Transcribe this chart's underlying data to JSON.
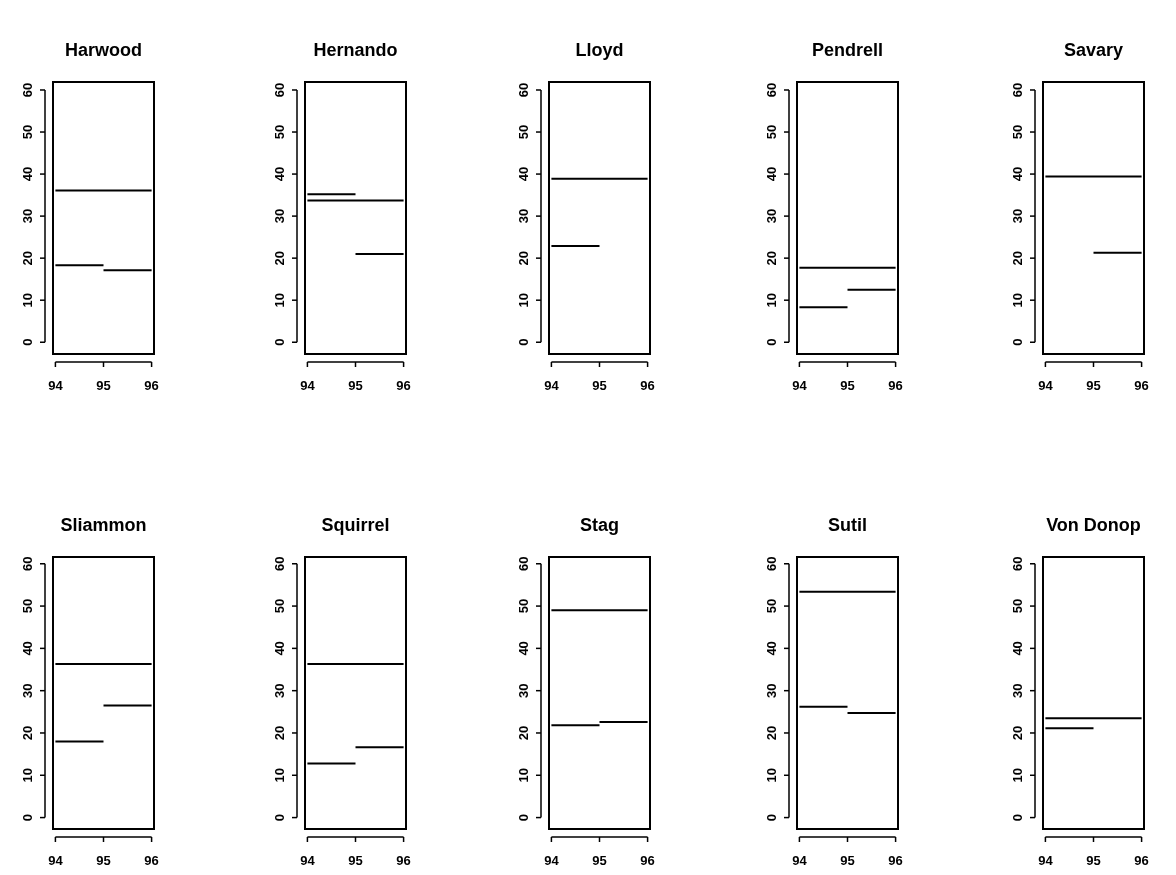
{
  "chart_data": [
    {
      "type": "line",
      "title": "Harwood",
      "xlim": [
        93.95,
        96.05
      ],
      "xticks": [
        94,
        95,
        96
      ],
      "ylim": [
        -2.8,
        61.9
      ],
      "yticks": [
        0,
        10,
        20,
        30,
        40,
        50,
        60
      ],
      "series": [
        {
          "color": "#000000",
          "x": [
            94,
            96
          ],
          "values": [
            36.1,
            36.1
          ]
        },
        {
          "color": "#000000",
          "x": [
            94,
            95
          ],
          "values": [
            18.3,
            18.3
          ]
        },
        {
          "color": "#000000",
          "x": [
            95,
            96
          ],
          "values": [
            17.1,
            17.1
          ]
        }
      ]
    },
    {
      "type": "line",
      "title": "Hernando",
      "xlim": [
        93.95,
        96.05
      ],
      "xticks": [
        94,
        95,
        96
      ],
      "ylim": [
        -2.8,
        61.9
      ],
      "yticks": [
        0,
        10,
        20,
        30,
        40,
        50,
        60
      ],
      "series": [
        {
          "color": "#000000",
          "x": [
            94,
            96
          ],
          "values": [
            33.7,
            33.7
          ]
        },
        {
          "color": "#000000",
          "x": [
            94,
            95
          ],
          "values": [
            35.2,
            35.2
          ]
        },
        {
          "color": "#000000",
          "x": [
            95,
            96
          ],
          "values": [
            21.0,
            21.0
          ]
        }
      ]
    },
    {
      "type": "line",
      "title": "Lloyd",
      "xlim": [
        93.95,
        96.05
      ],
      "xticks": [
        94,
        95,
        96
      ],
      "ylim": [
        -2.8,
        61.9
      ],
      "yticks": [
        0,
        10,
        20,
        30,
        40,
        50,
        60
      ],
      "series": [
        {
          "color": "#000000",
          "x": [
            94,
            96
          ],
          "values": [
            38.9,
            38.9
          ]
        },
        {
          "color": "#000000",
          "x": [
            94,
            95
          ],
          "values": [
            22.9,
            22.9
          ]
        }
      ]
    },
    {
      "type": "line",
      "title": "Pendrell",
      "xlim": [
        93.95,
        96.05
      ],
      "xticks": [
        94,
        95,
        96
      ],
      "ylim": [
        -2.8,
        61.9
      ],
      "yticks": [
        0,
        10,
        20,
        30,
        40,
        50,
        60
      ],
      "series": [
        {
          "color": "#000000",
          "x": [
            94,
            96
          ],
          "values": [
            17.7,
            17.7
          ]
        },
        {
          "color": "#000000",
          "x": [
            94,
            95
          ],
          "values": [
            8.3,
            8.3
          ]
        },
        {
          "color": "#000000",
          "x": [
            95,
            96
          ],
          "values": [
            12.5,
            12.5
          ]
        }
      ]
    },
    {
      "type": "line",
      "title": "Savary",
      "xlim": [
        93.95,
        96.05
      ],
      "xticks": [
        94,
        95,
        96
      ],
      "ylim": [
        -2.8,
        61.9
      ],
      "yticks": [
        0,
        10,
        20,
        30,
        40,
        50,
        60
      ],
      "series": [
        {
          "color": "#000000",
          "x": [
            94,
            96
          ],
          "values": [
            39.4,
            39.4
          ]
        },
        {
          "color": "#000000",
          "x": [
            95,
            96
          ],
          "values": [
            21.3,
            21.3
          ]
        }
      ]
    },
    {
      "type": "line",
      "title": "Sliammon",
      "xlim": [
        93.95,
        96.05
      ],
      "xticks": [
        94,
        95,
        96
      ],
      "ylim": [
        -2.7,
        61.6
      ],
      "yticks": [
        0,
        10,
        20,
        30,
        40,
        50,
        60
      ],
      "series": [
        {
          "color": "#000000",
          "x": [
            94,
            96
          ],
          "values": [
            36.3,
            36.3
          ]
        },
        {
          "color": "#000000",
          "x": [
            94,
            95
          ],
          "values": [
            18.0,
            18.0
          ]
        },
        {
          "color": "#000000",
          "x": [
            95,
            96
          ],
          "values": [
            26.5,
            26.5
          ]
        }
      ]
    },
    {
      "type": "line",
      "title": "Squirrel",
      "xlim": [
        93.95,
        96.05
      ],
      "xticks": [
        94,
        95,
        96
      ],
      "ylim": [
        -2.7,
        61.6
      ],
      "yticks": [
        0,
        10,
        20,
        30,
        40,
        50,
        60
      ],
      "series": [
        {
          "color": "#000000",
          "x": [
            94,
            96
          ],
          "values": [
            36.3,
            36.3
          ]
        },
        {
          "color": "#000000",
          "x": [
            94,
            95
          ],
          "values": [
            12.8,
            12.8
          ]
        },
        {
          "color": "#000000",
          "x": [
            95,
            96
          ],
          "values": [
            16.6,
            16.6
          ]
        }
      ]
    },
    {
      "type": "line",
      "title": "Stag",
      "xlim": [
        93.95,
        96.05
      ],
      "xticks": [
        94,
        95,
        96
      ],
      "ylim": [
        -2.7,
        61.6
      ],
      "yticks": [
        0,
        10,
        20,
        30,
        40,
        50,
        60
      ],
      "series": [
        {
          "color": "#000000",
          "x": [
            94,
            96
          ],
          "values": [
            49.0,
            49.0
          ]
        },
        {
          "color": "#000000",
          "x": [
            94,
            95
          ],
          "values": [
            21.8,
            21.8
          ]
        },
        {
          "color": "#000000",
          "x": [
            95,
            96
          ],
          "values": [
            22.6,
            22.6
          ]
        }
      ]
    },
    {
      "type": "line",
      "title": "Sutil",
      "xlim": [
        93.95,
        96.05
      ],
      "xticks": [
        94,
        95,
        96
      ],
      "ylim": [
        -2.7,
        61.6
      ],
      "yticks": [
        0,
        10,
        20,
        30,
        40,
        50,
        60
      ],
      "series": [
        {
          "color": "#000000",
          "x": [
            94,
            96
          ],
          "values": [
            53.4,
            53.4
          ]
        },
        {
          "color": "#000000",
          "x": [
            94,
            95
          ],
          "values": [
            26.2,
            26.2
          ]
        },
        {
          "color": "#000000",
          "x": [
            95,
            96
          ],
          "values": [
            24.7,
            24.7
          ]
        }
      ]
    },
    {
      "type": "line",
      "title": "Von Donop",
      "xlim": [
        93.95,
        96.05
      ],
      "xticks": [
        94,
        95,
        96
      ],
      "ylim": [
        -2.7,
        61.6
      ],
      "yticks": [
        0,
        10,
        20,
        30,
        40,
        50,
        60
      ],
      "series": [
        {
          "color": "#000000",
          "x": [
            94,
            96
          ],
          "values": [
            23.5,
            23.5
          ]
        },
        {
          "color": "#000000",
          "x": [
            94,
            95
          ],
          "values": [
            21.1,
            21.1
          ]
        }
      ]
    }
  ]
}
